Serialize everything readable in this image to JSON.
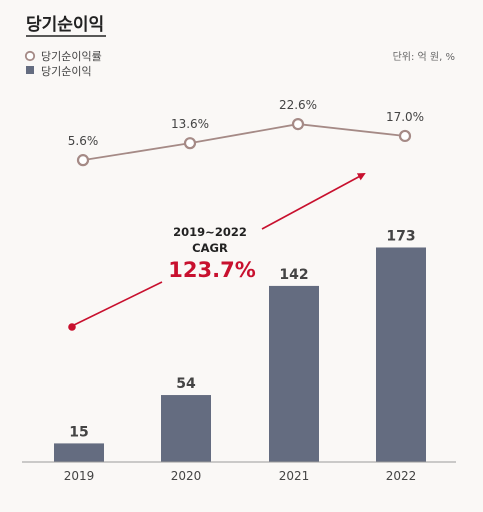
{
  "title": "당기순이익",
  "unit": "단위: 억 원, %",
  "legend": {
    "line_label": "당기순이익률",
    "bar_label": "당기순이익"
  },
  "cagr": {
    "period": "2019~2022",
    "label": "CAGR",
    "value": "123.7%"
  },
  "colors": {
    "bar": "#646c80",
    "line": "#a58a86",
    "accent": "#c8102e",
    "axis": "#999999"
  },
  "chart_data": {
    "type": "bar",
    "categories": [
      "2019",
      "2020",
      "2021",
      "2022"
    ],
    "series": [
      {
        "name": "당기순이익",
        "type": "bar",
        "values": [
          15,
          54,
          142,
          173
        ],
        "labels": [
          "15",
          "54",
          "142",
          "173"
        ]
      },
      {
        "name": "당기순이익률",
        "type": "line",
        "values": [
          5.6,
          13.6,
          22.6,
          17.0
        ],
        "labels": [
          "5.6%",
          "13.6%",
          "22.6%",
          "17.0%"
        ]
      }
    ],
    "title": "당기순이익",
    "xlabel": "",
    "ylabel": "",
    "grid": false,
    "legend_position": "top-left"
  }
}
